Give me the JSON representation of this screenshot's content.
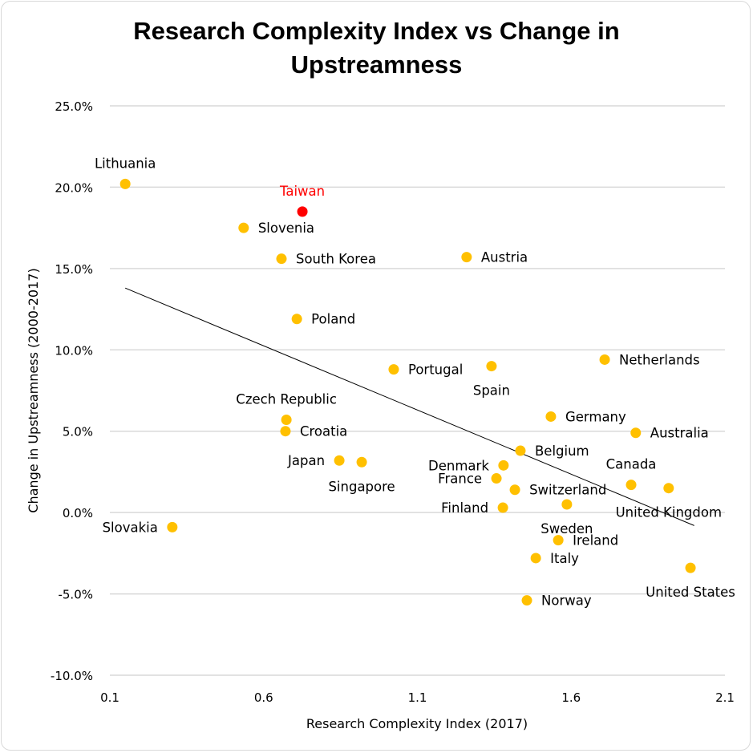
{
  "chart_data": {
    "type": "scatter",
    "title": "Research Complexity Index vs Change in Upstreamness",
    "title_lines": [
      "Research Complexity Index vs Change in",
      "Upstreamness"
    ],
    "xlabel": "Research Complexity Index (2017)",
    "ylabel": "Change in Upstreamness (2000-2017)",
    "xlim": [
      0.1,
      2.1
    ],
    "ylim": [
      -10,
      25
    ],
    "x_ticks": [
      0.1,
      0.6,
      1.1,
      1.6,
      2.1
    ],
    "x_tick_labels": [
      "0.1",
      "0.6",
      "1.1",
      "1.6",
      "2.1"
    ],
    "y_ticks": [
      25,
      20,
      15,
      10,
      5,
      0,
      -5,
      -10
    ],
    "y_tick_labels": [
      "25.0%",
      "20.0%",
      "15.0%",
      "10.0%",
      "5.0%",
      "0.0%",
      "-5.0%",
      "-10.0%"
    ],
    "grid": "horizontal",
    "legend": "none",
    "colors": {
      "point": "#FFC000",
      "highlight": "#FF0000",
      "trendline": "#000000",
      "grid": "#D9D9D9"
    },
    "trendline": {
      "type": "linear",
      "x": [
        0.15,
        2.0
      ],
      "y": [
        13.8,
        -0.8
      ]
    },
    "points": [
      {
        "label": "Lithuania",
        "x": 0.15,
        "y": 20.2,
        "label_pos": "above"
      },
      {
        "label": "Taiwan",
        "x": 0.726,
        "y": 18.5,
        "label_pos": "above",
        "highlight": true
      },
      {
        "label": "Slovenia",
        "x": 0.535,
        "y": 17.5,
        "label_pos": "right"
      },
      {
        "label": "South Korea",
        "x": 0.658,
        "y": 15.6,
        "label_pos": "right"
      },
      {
        "label": "Austria",
        "x": 1.26,
        "y": 15.7,
        "label_pos": "right"
      },
      {
        "label": "Poland",
        "x": 0.708,
        "y": 11.9,
        "label_pos": "right"
      },
      {
        "label": "Portugal",
        "x": 1.023,
        "y": 8.8,
        "label_pos": "right"
      },
      {
        "label": "Spain",
        "x": 1.341,
        "y": 9.0,
        "label_pos": "below"
      },
      {
        "label": "Netherlands",
        "x": 1.709,
        "y": 9.4,
        "label_pos": "right"
      },
      {
        "label": "Czech Republic",
        "x": 0.674,
        "y": 5.7,
        "label_pos": "above"
      },
      {
        "label": "Croatia",
        "x": 0.671,
        "y": 5.0,
        "label_pos": "right"
      },
      {
        "label": "Germany",
        "x": 1.534,
        "y": 5.9,
        "label_pos": "right"
      },
      {
        "label": "Australia",
        "x": 1.81,
        "y": 4.9,
        "label_pos": "right"
      },
      {
        "label": "Belgium",
        "x": 1.435,
        "y": 3.8,
        "label_pos": "right"
      },
      {
        "label": "Japan",
        "x": 0.846,
        "y": 3.2,
        "label_pos": "left"
      },
      {
        "label": "Singapore",
        "x": 0.919,
        "y": 3.1,
        "label_pos": "below"
      },
      {
        "label": "Denmark",
        "x": 1.38,
        "y": 2.9,
        "label_pos": "left"
      },
      {
        "label": "France",
        "x": 1.357,
        "y": 2.1,
        "label_pos": "left"
      },
      {
        "label": "Switzerland",
        "x": 1.417,
        "y": 1.4,
        "label_pos": "right"
      },
      {
        "label": "Canada",
        "x": 1.795,
        "y": 1.7,
        "label_pos": "above"
      },
      {
        "label": "United Kingdom",
        "x": 1.917,
        "y": 1.5,
        "label_pos": "below"
      },
      {
        "label": "Finland",
        "x": 1.378,
        "y": 0.3,
        "label_pos": "left"
      },
      {
        "label": "Sweden",
        "x": 1.586,
        "y": 0.5,
        "label_pos": "below"
      },
      {
        "label": "Ireland",
        "x": 1.558,
        "y": -1.7,
        "label_pos": "right"
      },
      {
        "label": "Slovakia",
        "x": 0.303,
        "y": -0.9,
        "label_pos": "left"
      },
      {
        "label": "Italy",
        "x": 1.485,
        "y": -2.8,
        "label_pos": "right"
      },
      {
        "label": "Norway",
        "x": 1.456,
        "y": -5.4,
        "label_pos": "right"
      },
      {
        "label": "United States",
        "x": 1.988,
        "y": -3.4,
        "label_pos": "below"
      }
    ]
  }
}
